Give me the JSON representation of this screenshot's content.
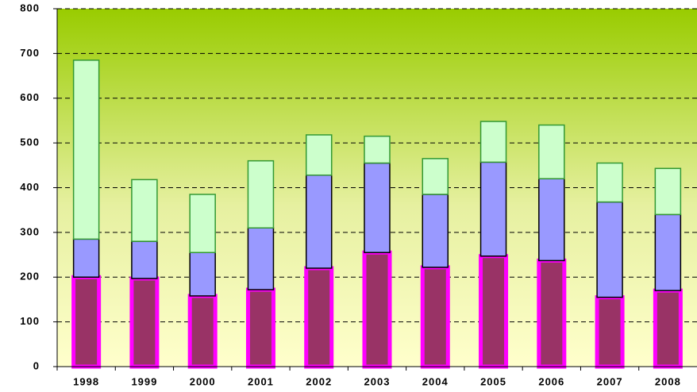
{
  "chart_data": {
    "type": "stacked_bar",
    "categories": [
      "1998",
      "1999",
      "2000",
      "2001",
      "2002",
      "2003",
      "2004",
      "2005",
      "2006",
      "2007",
      "2008"
    ],
    "series": [
      {
        "color": "#993366",
        "edge": "#ff00ff",
        "values": [
          200,
          197,
          158,
          172,
          220,
          255,
          222,
          247,
          237,
          155,
          170
        ]
      },
      {
        "color": "#9999ff",
        "edge": "#000000",
        "values": [
          85,
          83,
          97,
          138,
          208,
          200,
          163,
          210,
          183,
          213,
          170
        ]
      },
      {
        "color": "#ccffcc",
        "edge": "#339933",
        "values": [
          400,
          138,
          130,
          150,
          90,
          60,
          80,
          91,
          120,
          87,
          103
        ]
      }
    ],
    "ylim": [
      0,
      800
    ],
    "yticks": [
      0,
      100,
      200,
      300,
      400,
      500,
      600,
      700,
      800
    ],
    "grid": true
  }
}
